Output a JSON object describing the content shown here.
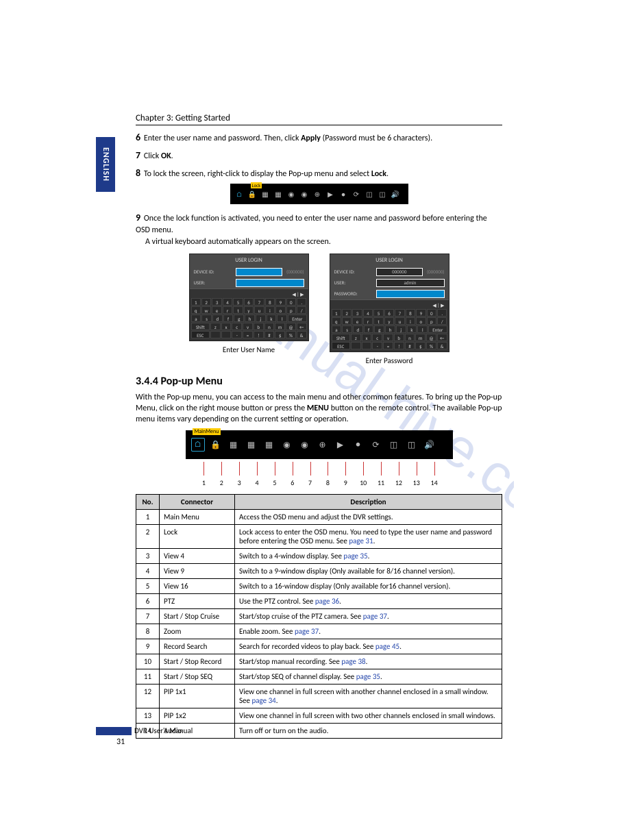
{
  "chapter_header": "Chapter 3: Getting Started",
  "language_tab": "ENGLISH",
  "steps": {
    "s6": {
      "num": "6",
      "text_before": "Enter the user name and password. Then, click ",
      "bold1": "Apply",
      "text_after": " (Password must be 6 characters)."
    },
    "s7": {
      "num": "7",
      "text_before": "Click ",
      "bold1": "OK",
      "text_after": "."
    },
    "s8": {
      "num": "8",
      "text_before": "To lock the screen, right-click to display the Pop-up menu and select ",
      "bold1": "Lock",
      "text_after": "."
    },
    "s9": {
      "num": "9",
      "text1": "Once the lock function is activated, you need to enter the user name and password before entering the OSD menu.",
      "text2": "A virtual keyboard automatically appears on the screen."
    }
  },
  "toolbar_small": {
    "lock_label": "Lock",
    "icons": [
      "⌂",
      "🔒",
      "▦",
      "▦",
      "◉",
      "◉",
      "⊕",
      "▶",
      "●",
      "⟳",
      "◫",
      "◫",
      "🔊"
    ]
  },
  "vkb": {
    "header": "USER LOGIN",
    "device_id_label": "DEVICE ID:",
    "device_id_value": "000000",
    "device_id_paren": "(000000)",
    "user_label": "USER:",
    "password_label": "PASSWORD:",
    "admin_value": "admin",
    "arrows": "◀ | ▶",
    "row1": [
      "1",
      "2",
      "3",
      "4",
      "5",
      "6",
      "7",
      "8",
      "9",
      "0",
      "."
    ],
    "row2": [
      "q",
      "w",
      "e",
      "r",
      "t",
      "y",
      "u",
      "i",
      "o",
      "p",
      "/"
    ],
    "row3": [
      "a",
      "s",
      "d",
      "f",
      "g",
      "h",
      "j",
      "k",
      "l",
      "Enter"
    ],
    "row4": [
      "Shift",
      "z",
      "x",
      "c",
      "v",
      "b",
      "n",
      "m",
      "@",
      "←"
    ],
    "row5": [
      "ESC",
      "",
      "",
      "-",
      "=",
      "!",
      "#",
      "$",
      "%",
      "&"
    ],
    "caption_left": "Enter User Name",
    "caption_right": "Enter Password"
  },
  "section_heading": "3.4.4 Pop-up Menu",
  "section_body": {
    "text": "With the Pop-up menu, you can access to the main menu and other common features. To bring up the Pop-up Menu, click on the right mouse button or press the ",
    "bold": "MENU",
    "text2": " button on the remote control.  The available Pop-up menu items vary depending on the current setting or operation."
  },
  "popup_toolbar": {
    "mm_label": "MainMenu",
    "icons": [
      "⌂",
      "🔒",
      "▦",
      "▦",
      "▦",
      "◉",
      "◉",
      "⊕",
      "▶",
      "●",
      "⟳",
      "◫",
      "◫",
      "🔊"
    ]
  },
  "callout_numbers": [
    "1",
    "2",
    "3",
    "4",
    "5",
    "6",
    "7",
    "8",
    "9",
    "10",
    "11",
    "12",
    "13",
    "14"
  ],
  "table": {
    "headers": {
      "no": "No.",
      "conn": "Connector",
      "desc": "Description"
    },
    "rows": [
      {
        "no": "1",
        "conn": "Main Menu",
        "desc": "Access the OSD menu and adjust the DVR settings."
      },
      {
        "no": "2",
        "conn": "Lock",
        "desc": "Lock access to enter the OSD menu. You need to type the user name and password before entering the OSD menu. See ",
        "link": "page 31",
        "desc_after": "."
      },
      {
        "no": "3",
        "conn": "View 4",
        "desc": "Switch to a 4-window display. See ",
        "link": "page 35",
        "desc_after": "."
      },
      {
        "no": "4",
        "conn": "View 9",
        "desc": "Switch to a 9-window display (Only available for 8/16 channel version)."
      },
      {
        "no": "5",
        "conn": "View 16",
        "desc": "Switch to a 16-window display (Only available for16 channel version)."
      },
      {
        "no": "6",
        "conn": "PTZ",
        "desc": "Use the PTZ control. See ",
        "link": "page 36",
        "desc_after": "."
      },
      {
        "no": "7",
        "conn": "Start / Stop Cruise",
        "desc": "Start/stop cruise of the PTZ camera. See ",
        "link": "page 37",
        "desc_after": "."
      },
      {
        "no": "8",
        "conn": "Zoom",
        "desc": "Enable zoom. See ",
        "link": "page 37",
        "desc_after": "."
      },
      {
        "no": "9",
        "conn": "Record Search",
        "desc": "Search for recorded videos to play back. See ",
        "link": "page 45",
        "desc_after": "."
      },
      {
        "no": "10",
        "conn": "Start / Stop Record",
        "desc": "Start/stop manual recording. See ",
        "link": "page 38",
        "desc_after": "."
      },
      {
        "no": "11",
        "conn": "Start / Stop SEQ",
        "desc": "Start/stop SEQ  of channel display. See ",
        "link": "page 35",
        "desc_after": "."
      },
      {
        "no": "12",
        "conn": "PIP 1x1",
        "desc": "View one channel in full screen with another channel enclosed in a small window. See ",
        "link": "page 34",
        "desc_after": "."
      },
      {
        "no": "13",
        "conn": "PIP 1x2",
        "desc": "View one channel in full screen with two other channels enclosed in small windows."
      },
      {
        "no": "14",
        "conn": "Audio",
        "desc": "Turn off or turn on the audio."
      }
    ]
  },
  "footer_text": "DVR User's Manual",
  "page_number": "31",
  "colors": {
    "brand": "#1e3a8a",
    "table_header": "#d0d0d0",
    "link": "#2244aa",
    "watermark": "#5577cc",
    "callout": "#cc3333"
  }
}
